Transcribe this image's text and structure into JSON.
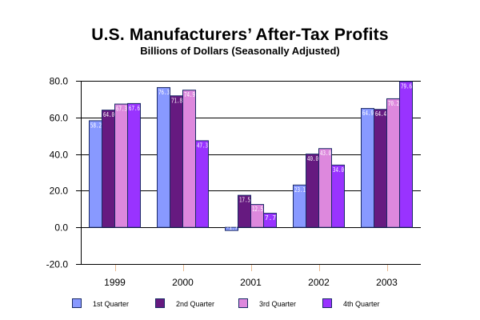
{
  "chart_data": {
    "type": "bar",
    "title": "U.S. Manufacturers’ After-Tax Profits",
    "subtitle": "Billions of Dollars (Seasonally Adjusted)",
    "xlabel": "",
    "ylabel": "",
    "categories": [
      "1999",
      "2000",
      "2001",
      "2002",
      "2003"
    ],
    "series": [
      {
        "name": "1st Quarter",
        "color": "#8899ff",
        "values": [
          58.2,
          76.3,
          -1.7,
          23.1,
          64.9
        ],
        "labels": [
          "58.2",
          "76.3",
          "-1.7",
          "23.1",
          "64.9"
        ]
      },
      {
        "name": "2nd Quarter",
        "color": "#661a80",
        "values": [
          64.0,
          71.8,
          17.5,
          40.0,
          64.4
        ],
        "labels": [
          "64.0",
          "71.8",
          "17.5",
          "40.0",
          "64.4"
        ]
      },
      {
        "name": "3rd Quarter",
        "color": "#dd88dd",
        "values": [
          67.3,
          74.9,
          12.5,
          43.0,
          70.2
        ],
        "labels": [
          "67.3",
          "74.9",
          "12.5",
          "43.0",
          "70.2"
        ]
      },
      {
        "name": "4th Quarter",
        "color": "#9933ff",
        "values": [
          67.6,
          47.3,
          7.7,
          34.0,
          79.6
        ],
        "labels": [
          "67.6",
          "47.3",
          "7.7",
          "34.0",
          "79.6"
        ]
      }
    ],
    "ylim": [
      -20,
      80
    ],
    "yticks": [
      80,
      60,
      40,
      20,
      0,
      -20
    ],
    "ytick_labels": [
      "80.0",
      "60.0",
      "40.0",
      "20.0",
      "0.0",
      "-20.0"
    ],
    "grid": true,
    "legend_position": "bottom",
    "bar_border_color": "#1a2a66",
    "xtick_color": "#e8b890"
  }
}
